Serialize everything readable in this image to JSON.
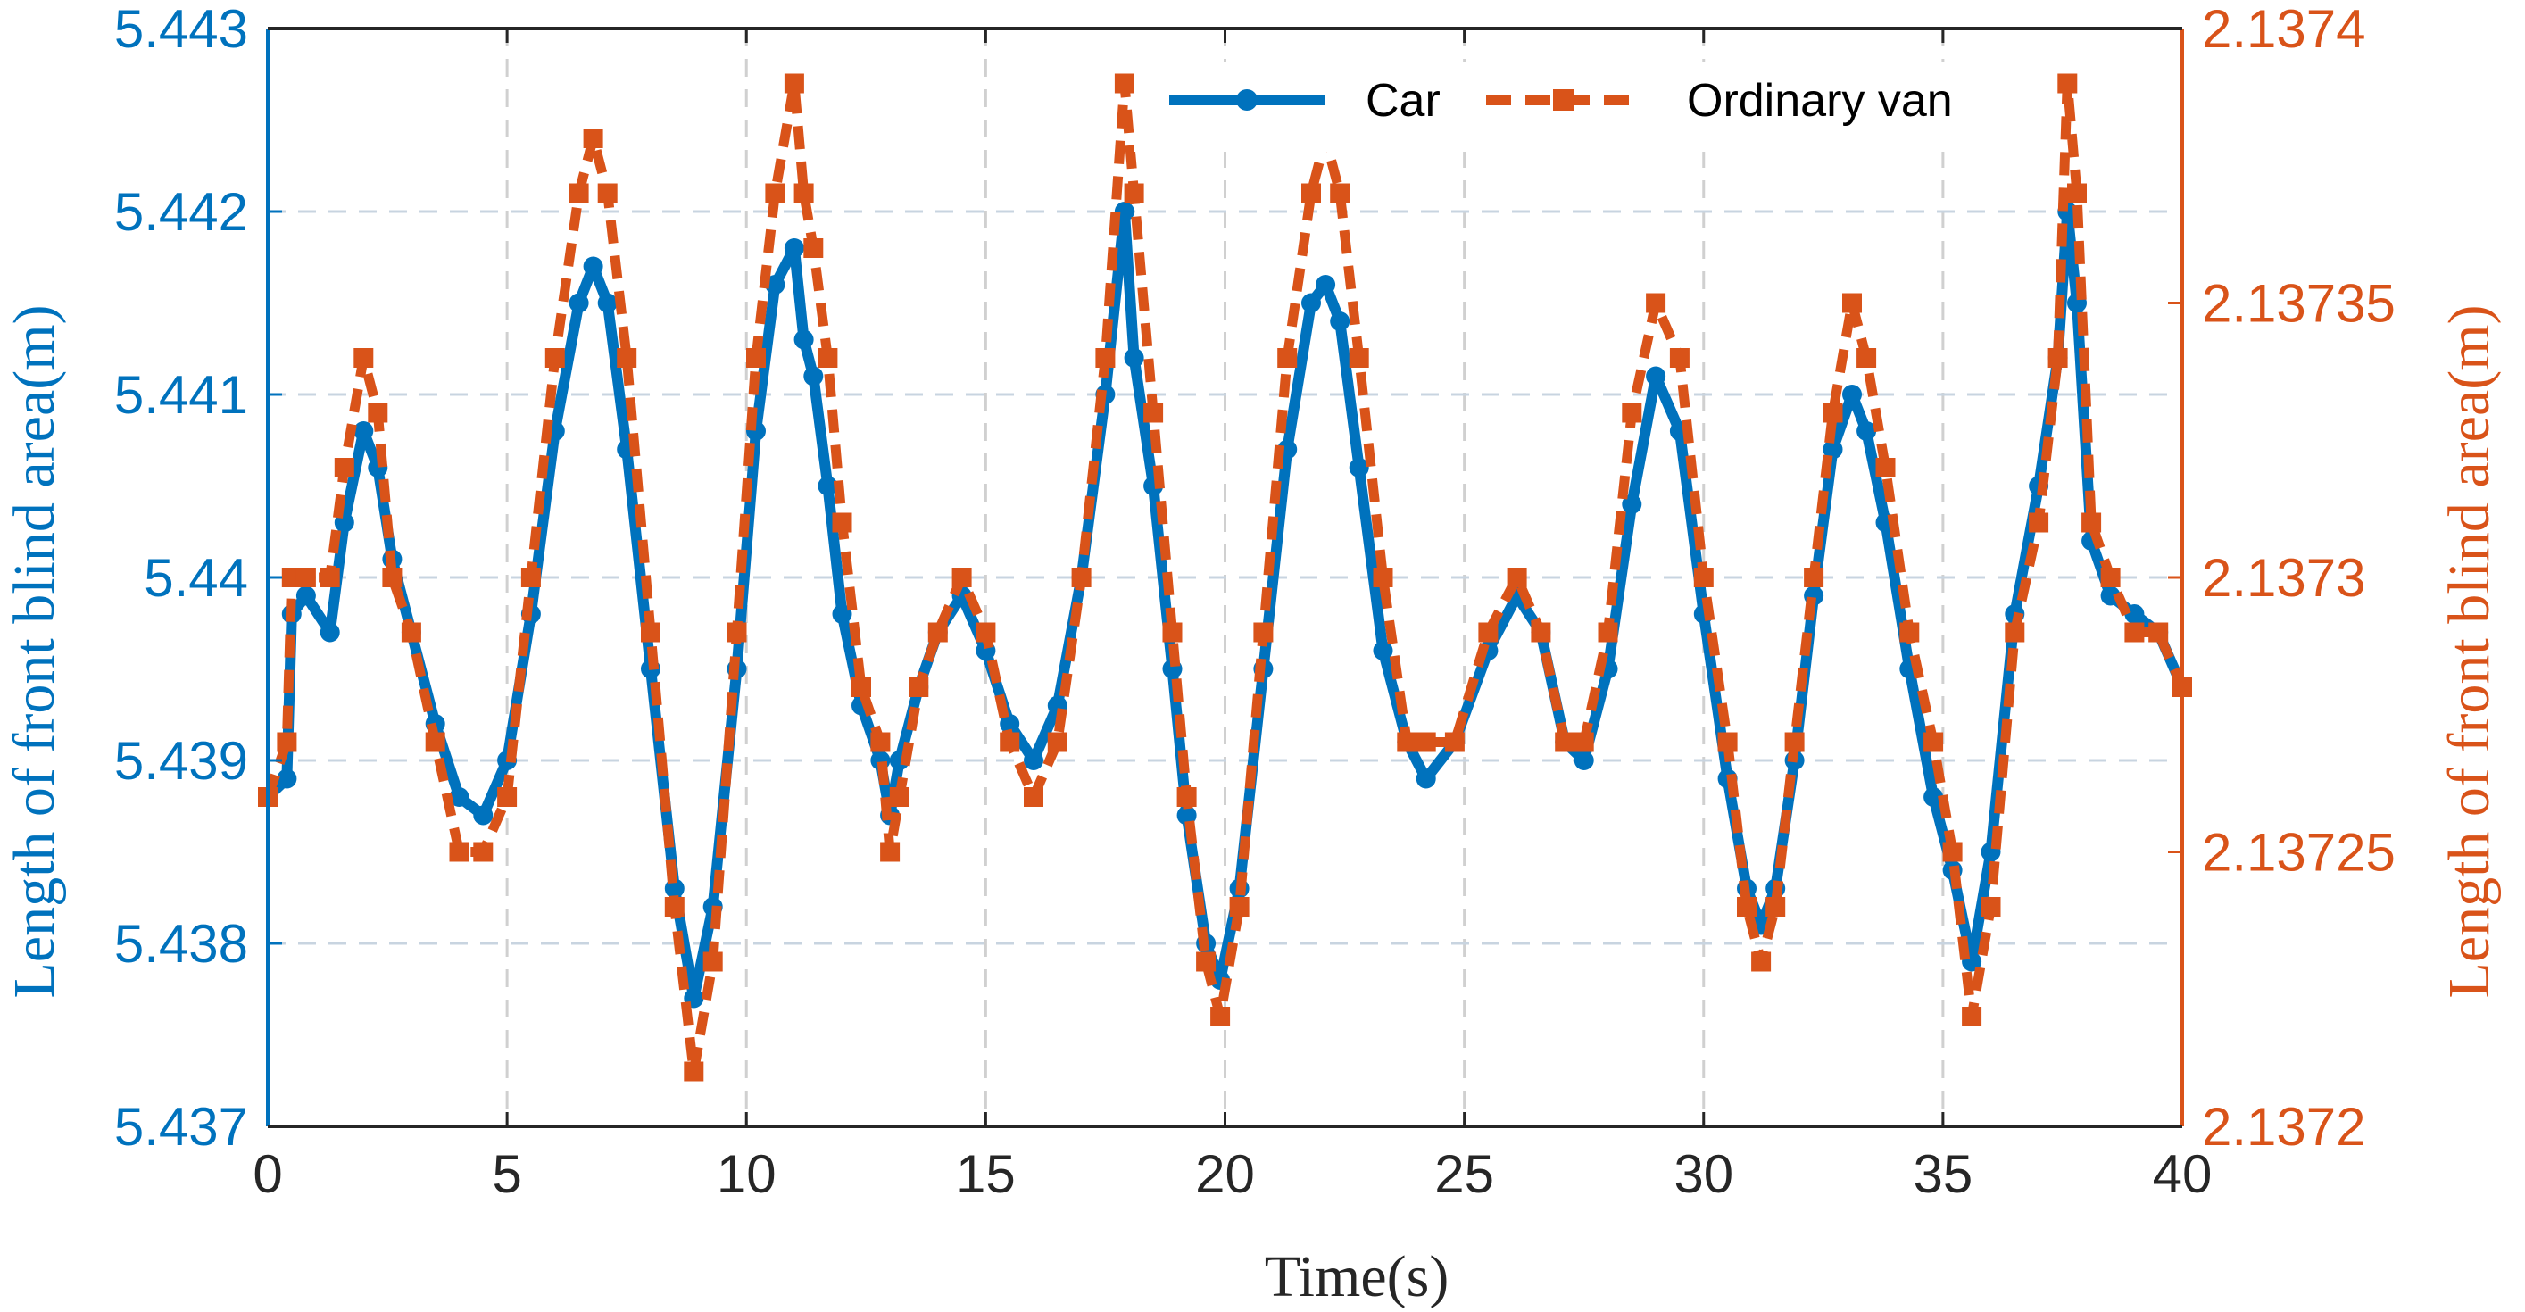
{
  "chart_data": {
    "type": "line",
    "title": "",
    "xlabel": "Time(s)",
    "ylabel_left": "Length of front blind area(m)",
    "ylabel_right": "Length of front blind area(m)",
    "xlim": [
      0,
      40
    ],
    "ylim_left": [
      5.437,
      5.443
    ],
    "ylim_right": [
      2.1372,
      2.1374
    ],
    "x_ticks": [
      "0",
      "5",
      "10",
      "15",
      "20",
      "25",
      "30",
      "35",
      "40"
    ],
    "y_ticks_left": [
      "5.437",
      "5.438",
      "5.439",
      "5.44",
      "5.441",
      "5.442",
      "5.443"
    ],
    "y_ticks_right": [
      "2.1372",
      "2.13725",
      "2.1373",
      "2.13735",
      "2.1374"
    ],
    "grid": true,
    "legend_position": "top-right",
    "colors": {
      "car": "#0072BD",
      "van": "#D95319",
      "grid": "#c8d4e0"
    },
    "series": [
      {
        "name": "Car",
        "axis": "left",
        "style": "solid line with circle markers",
        "x": [
          0,
          0.4,
          0.5,
          0.8,
          1.3,
          1.6,
          2.0,
          2.3,
          2.6,
          3.0,
          3.5,
          4.0,
          4.5,
          5.0,
          5.5,
          6.0,
          6.5,
          6.8,
          7.1,
          7.5,
          8.0,
          8.5,
          8.9,
          9.3,
          9.8,
          10.2,
          10.6,
          11.0,
          11.2,
          11.4,
          11.7,
          12.0,
          12.4,
          12.8,
          13.0,
          13.2,
          13.6,
          14.0,
          14.5,
          15.0,
          15.5,
          16.0,
          16.5,
          17.0,
          17.5,
          17.9,
          18.1,
          18.5,
          18.9,
          19.2,
          19.6,
          19.9,
          20.3,
          20.8,
          21.3,
          21.8,
          22.1,
          22.4,
          22.8,
          23.3,
          23.8,
          24.2,
          24.8,
          25.5,
          26.1,
          26.6,
          27.1,
          27.5,
          28.0,
          28.5,
          29.0,
          29.5,
          30.0,
          30.5,
          30.9,
          31.2,
          31.5,
          31.9,
          32.3,
          32.7,
          33.1,
          33.4,
          33.8,
          34.3,
          34.8,
          35.2,
          35.6,
          36.0,
          36.5,
          37.0,
          37.4,
          37.6,
          37.8,
          38.1,
          38.5,
          39.0,
          39.5,
          40.0
        ],
        "y": [
          5.4388,
          5.4389,
          5.4398,
          5.4399,
          5.4397,
          5.4403,
          5.4408,
          5.4406,
          5.4401,
          5.4397,
          5.4392,
          5.4388,
          5.4387,
          5.439,
          5.4398,
          5.4408,
          5.4415,
          5.4417,
          5.4415,
          5.4407,
          5.4395,
          5.4383,
          5.4377,
          5.4382,
          5.4395,
          5.4408,
          5.4416,
          5.4418,
          5.4413,
          5.4411,
          5.4405,
          5.4398,
          5.4393,
          5.439,
          5.4387,
          5.439,
          5.4394,
          5.4397,
          5.4399,
          5.4396,
          5.4392,
          5.439,
          5.4393,
          5.44,
          5.441,
          5.442,
          5.4412,
          5.4405,
          5.4395,
          5.4387,
          5.438,
          5.4378,
          5.4383,
          5.4395,
          5.4407,
          5.4415,
          5.4416,
          5.4414,
          5.4406,
          5.4396,
          5.4391,
          5.4389,
          5.4391,
          5.4396,
          5.4399,
          5.4397,
          5.4391,
          5.439,
          5.4395,
          5.4404,
          5.4411,
          5.4408,
          5.4398,
          5.4389,
          5.4383,
          5.4381,
          5.4383,
          5.439,
          5.4399,
          5.4407,
          5.441,
          5.4408,
          5.4403,
          5.4395,
          5.4388,
          5.4384,
          5.4379,
          5.4385,
          5.4398,
          5.4405,
          5.4412,
          5.442,
          5.4415,
          5.4402,
          5.4399,
          5.4398,
          5.4397,
          5.4394
        ]
      },
      {
        "name": "Ordinary van",
        "axis": "right",
        "style": "dashed line with square markers",
        "x": [
          0,
          0.4,
          0.5,
          0.8,
          1.3,
          1.6,
          2.0,
          2.3,
          2.6,
          3.0,
          3.5,
          4.0,
          4.5,
          5.0,
          5.5,
          6.0,
          6.5,
          6.8,
          7.1,
          7.5,
          8.0,
          8.5,
          8.9,
          9.3,
          9.8,
          10.2,
          10.6,
          11.0,
          11.2,
          11.4,
          11.7,
          12.0,
          12.4,
          12.8,
          13.0,
          13.2,
          13.6,
          14.0,
          14.5,
          15.0,
          15.5,
          16.0,
          16.5,
          17.0,
          17.5,
          17.9,
          18.1,
          18.5,
          18.9,
          19.2,
          19.6,
          19.9,
          20.3,
          20.8,
          21.3,
          21.8,
          22.1,
          22.4,
          22.8,
          23.3,
          23.8,
          24.2,
          24.8,
          25.5,
          26.1,
          26.6,
          27.1,
          27.5,
          28.0,
          28.5,
          29.0,
          29.5,
          30.0,
          30.5,
          30.9,
          31.2,
          31.5,
          31.9,
          32.3,
          32.7,
          33.1,
          33.4,
          33.8,
          34.3,
          34.8,
          35.2,
          35.6,
          36.0,
          36.5,
          37.0,
          37.4,
          37.6,
          37.8,
          38.1,
          38.5,
          39.0,
          39.5,
          40.0
        ],
        "y": [
          2.13726,
          2.13727,
          2.1373,
          2.1373,
          2.1373,
          2.13732,
          2.13734,
          2.13733,
          2.1373,
          2.13729,
          2.13727,
          2.13725,
          2.13725,
          2.13726,
          2.1373,
          2.13734,
          2.13737,
          2.13738,
          2.13737,
          2.13734,
          2.13729,
          2.13724,
          2.13721,
          2.13723,
          2.13729,
          2.13734,
          2.13737,
          2.13739,
          2.13737,
          2.13736,
          2.13734,
          2.13731,
          2.13728,
          2.13727,
          2.13725,
          2.13726,
          2.13728,
          2.13729,
          2.1373,
          2.13729,
          2.13727,
          2.13726,
          2.13727,
          2.1373,
          2.13734,
          2.13739,
          2.13737,
          2.13733,
          2.13729,
          2.13726,
          2.13723,
          2.13722,
          2.13724,
          2.13729,
          2.13734,
          2.13737,
          2.13738,
          2.13737,
          2.13734,
          2.1373,
          2.13727,
          2.13727,
          2.13727,
          2.13729,
          2.1373,
          2.13729,
          2.13727,
          2.13727,
          2.13729,
          2.13733,
          2.13735,
          2.13734,
          2.1373,
          2.13727,
          2.13724,
          2.13723,
          2.13724,
          2.13727,
          2.1373,
          2.13733,
          2.13735,
          2.13734,
          2.13732,
          2.13729,
          2.13727,
          2.13725,
          2.13722,
          2.13724,
          2.13729,
          2.13731,
          2.13734,
          2.13739,
          2.13737,
          2.13731,
          2.1373,
          2.13729,
          2.13729,
          2.13728
        ]
      }
    ]
  }
}
